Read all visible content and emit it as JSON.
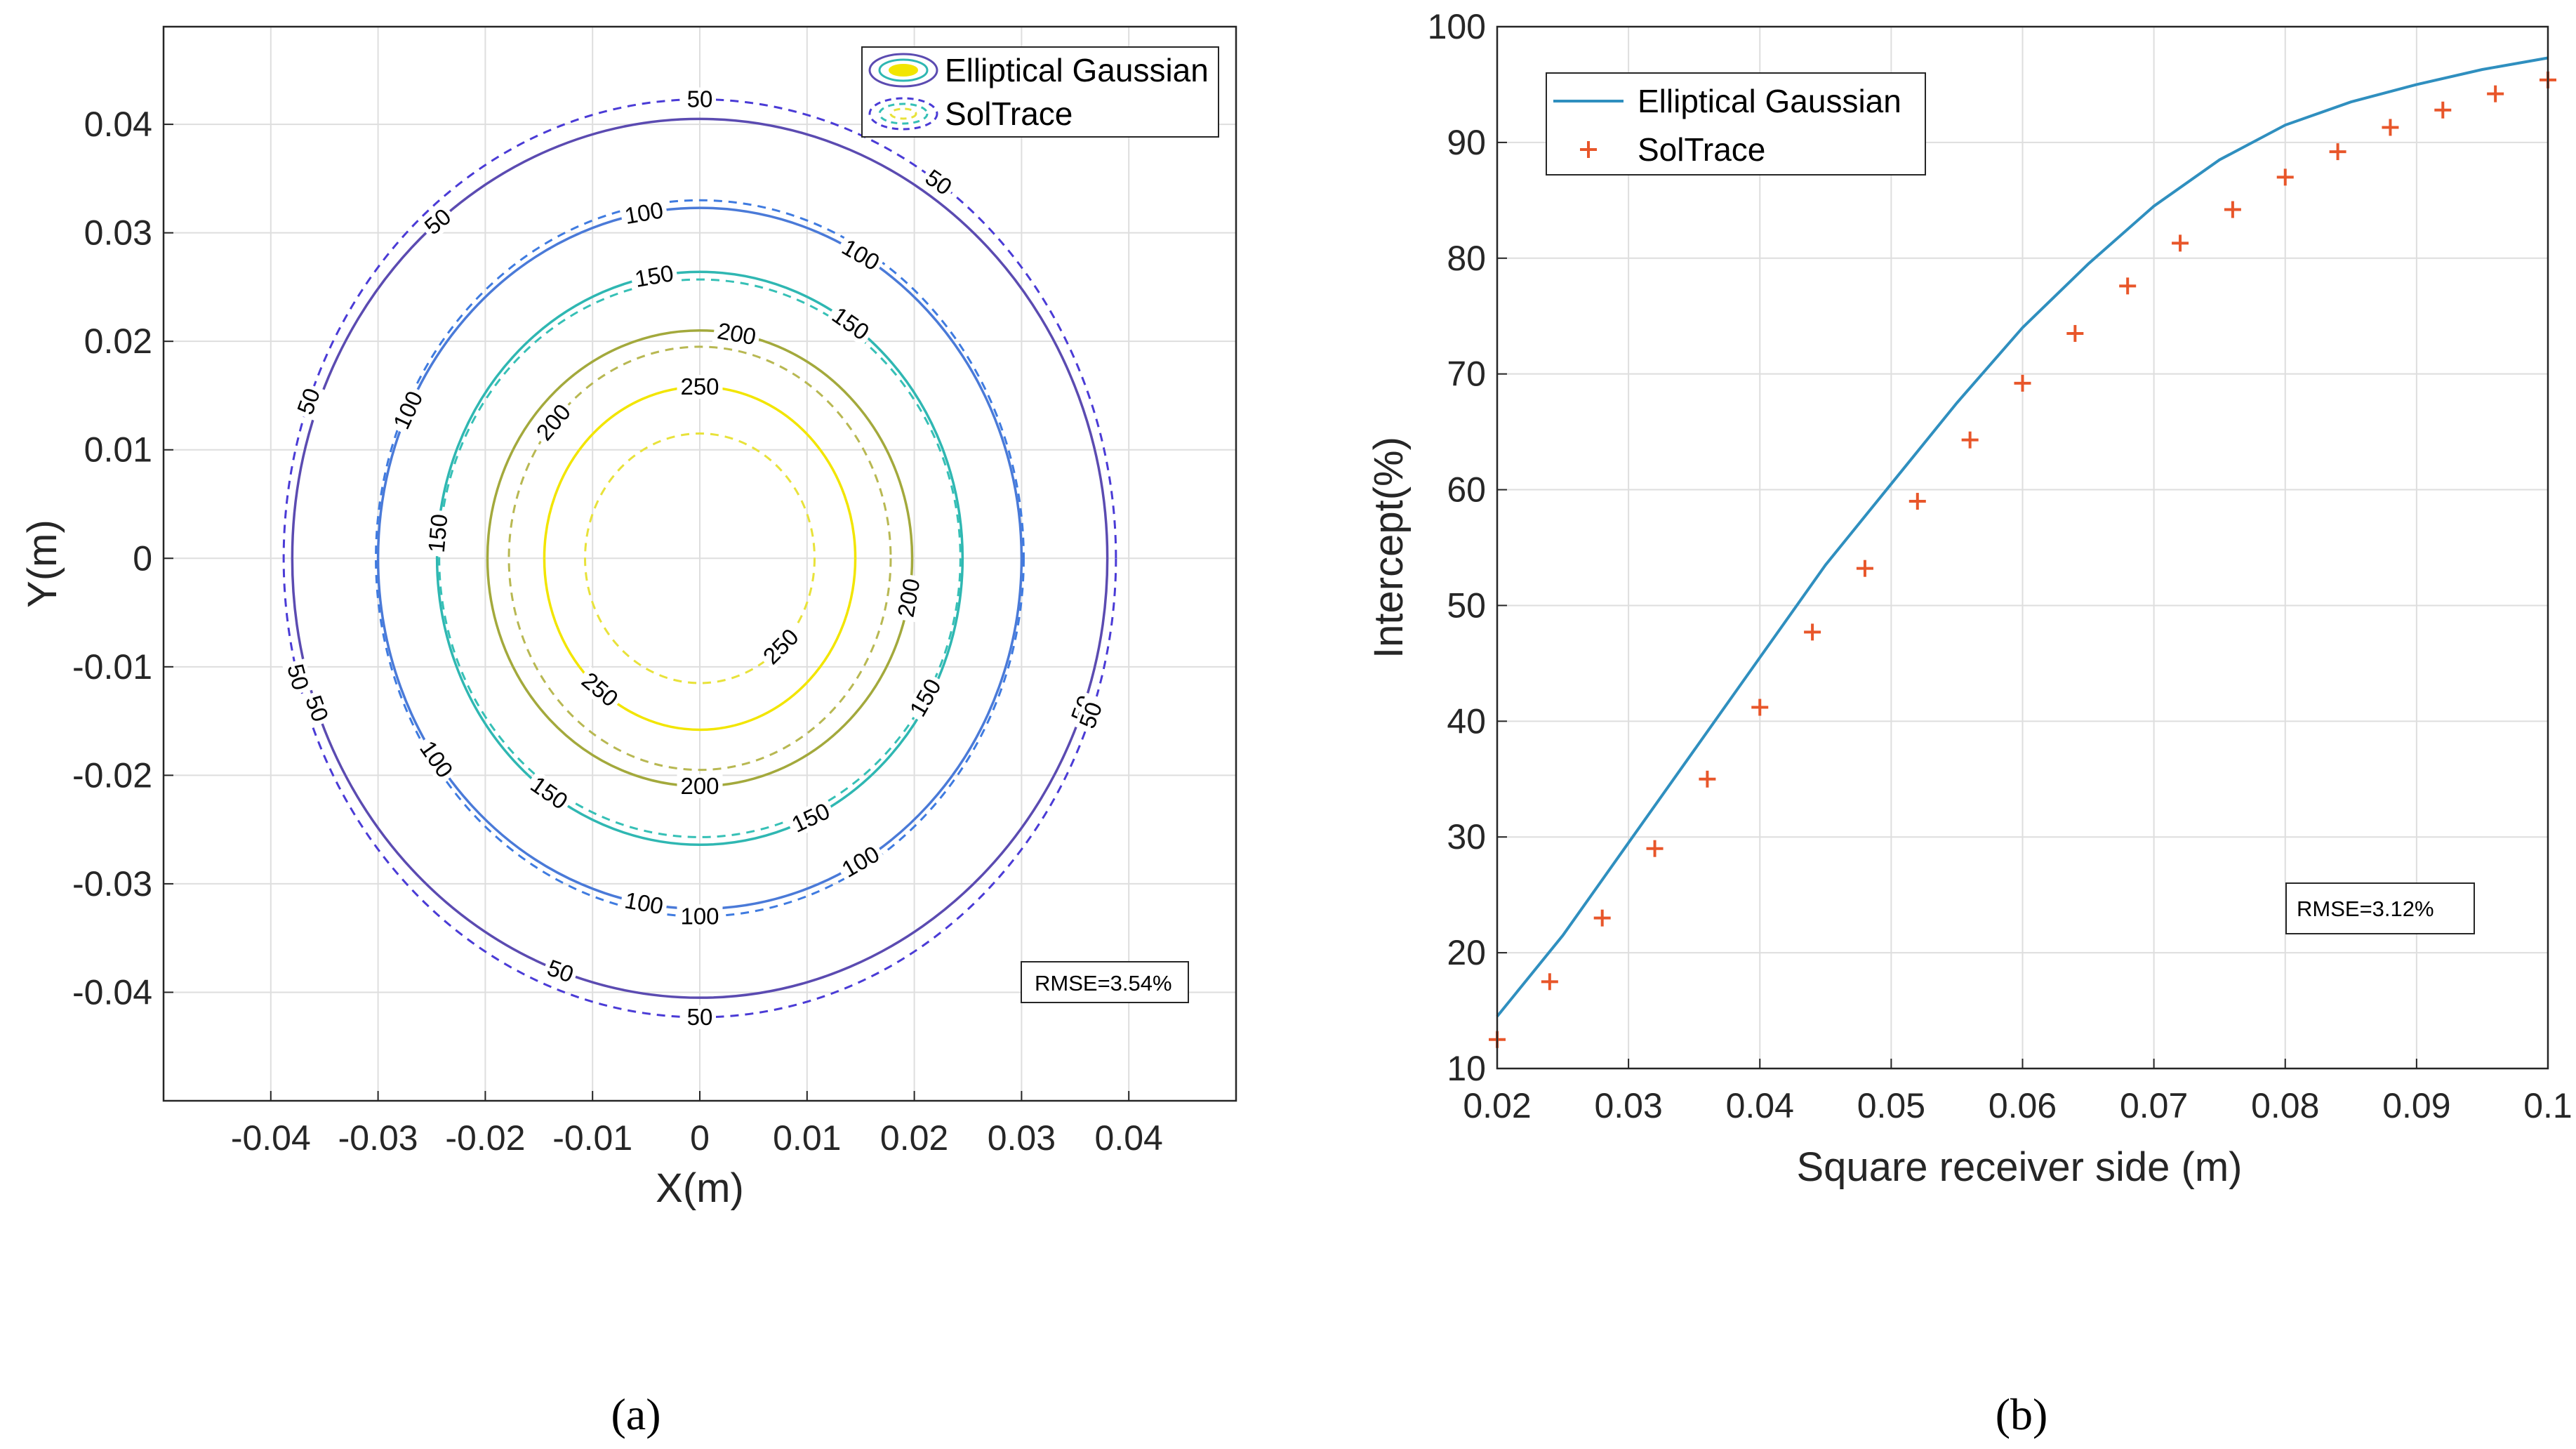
{
  "chart_data": [
    {
      "type": "contour",
      "panel_label": "(a)",
      "xlabel": "X(m)",
      "ylabel": "Y(m)",
      "xlim": [
        -0.05,
        0.05
      ],
      "ylim": [
        -0.05,
        0.049
      ],
      "xticks": [
        -0.04,
        -0.03,
        -0.02,
        -0.01,
        0,
        0.01,
        0.02,
        0.03,
        0.04
      ],
      "xtick_labels": [
        "-0.04",
        "-0.03",
        "-0.02",
        "-0.01",
        "0",
        "0.01",
        "0.02",
        "0.03",
        "0.04"
      ],
      "yticks": [
        0.04,
        0.03,
        0.02,
        0.01,
        0,
        -0.01,
        -0.02,
        -0.03,
        -0.04
      ],
      "ytick_labels": [
        "0.04",
        "0.03",
        "0.02",
        "0.01",
        "0",
        "-0.01",
        "-0.02",
        "-0.03",
        "-0.04"
      ],
      "grid": true,
      "legend": [
        "Elliptical Gaussian",
        "SolTrace"
      ],
      "legend_location": "top-right",
      "annotation": "RMSE=3.54%",
      "series": [
        {
          "name": "Elliptical Gaussian",
          "style": "solid",
          "contours": [
            {
              "level": 50,
              "rx": 0.038,
              "ry": 0.0405,
              "color": "#5b4bb1",
              "labels": [
                "50",
                "50",
                "50",
                "50"
              ]
            },
            {
              "level": 100,
              "rx": 0.03,
              "ry": 0.0323,
              "color": "#4a7ad8",
              "labels": [
                "100",
                "100",
                "100",
                "100",
                "100",
                "100"
              ]
            },
            {
              "level": 150,
              "rx": 0.0245,
              "ry": 0.0264,
              "color": "#2fb7b2",
              "labels": [
                "150",
                "150",
                "150",
                "150",
                "150"
              ]
            },
            {
              "level": 200,
              "rx": 0.0198,
              "ry": 0.021,
              "color": "#a3a93c",
              "labels": [
                "200",
                "200",
                "200"
              ]
            },
            {
              "level": 250,
              "rx": 0.0145,
              "ry": 0.0158,
              "color": "#f2e500",
              "labels": [
                "250",
                "250"
              ]
            }
          ]
        },
        {
          "name": "SolTrace",
          "style": "dashed",
          "contours": [
            {
              "level": 50,
              "rx": 0.0388,
              "ry": 0.0423,
              "color": "#4a3bd6",
              "labels": [
                "50",
                "50",
                "50",
                "50",
                "50",
                "50"
              ]
            },
            {
              "level": 100,
              "rx": 0.0302,
              "ry": 0.033,
              "color": "#3f7be0",
              "labels": [
                "100"
              ]
            },
            {
              "level": 150,
              "rx": 0.0243,
              "ry": 0.0257,
              "color": "#36c0b6",
              "labels": [
                "150"
              ]
            },
            {
              "level": 200,
              "rx": 0.0178,
              "ry": 0.0195,
              "color": "#b8b852",
              "labels": [
                "200"
              ]
            },
            {
              "level": 250,
              "rx": 0.0107,
              "ry": 0.0115,
              "color": "#e8e23a",
              "labels": [
                "250"
              ]
            }
          ]
        }
      ]
    },
    {
      "type": "line",
      "panel_label": "(b)",
      "xlabel": "Square receiver side (m)",
      "ylabel": "Intercept(%)",
      "xlim": [
        0.02,
        0.1
      ],
      "ylim": [
        10,
        100
      ],
      "xticks": [
        0.02,
        0.03,
        0.04,
        0.05,
        0.06,
        0.07,
        0.08,
        0.09,
        0.1
      ],
      "xtick_labels": [
        "0.02",
        "0.03",
        "0.04",
        "0.05",
        "0.06",
        "0.07",
        "0.08",
        "0.09",
        "0.1"
      ],
      "yticks": [
        10,
        20,
        30,
        40,
        50,
        60,
        70,
        80,
        90,
        100
      ],
      "ytick_labels": [
        "10",
        "20",
        "30",
        "40",
        "50",
        "60",
        "70",
        "80",
        "90",
        "100"
      ],
      "grid": true,
      "legend_location": "top-left",
      "annotation": "RMSE=3.12%",
      "series": [
        {
          "name": "Elliptical Gaussian",
          "style": "line",
          "color": "#2f8fbf",
          "x": [
            0.02,
            0.025,
            0.03,
            0.035,
            0.04,
            0.045,
            0.05,
            0.055,
            0.06,
            0.065,
            0.07,
            0.075,
            0.08,
            0.085,
            0.09,
            0.095,
            0.1
          ],
          "y": [
            14.5,
            21.5,
            29.5,
            37.5,
            45.5,
            53.5,
            60.5,
            67.5,
            74,
            79.5,
            84.5,
            88.5,
            91.5,
            93.5,
            95,
            96.3,
            97.3
          ]
        },
        {
          "name": "SolTrace",
          "style": "marker",
          "marker": "+",
          "color": "#e8562a",
          "x": [
            0.02,
            0.024,
            0.028,
            0.032,
            0.036,
            0.04,
            0.044,
            0.048,
            0.052,
            0.056,
            0.06,
            0.064,
            0.068,
            0.072,
            0.076,
            0.08,
            0.084,
            0.088,
            0.092,
            0.096,
            0.1
          ],
          "y": [
            12.5,
            17.5,
            23,
            29,
            35,
            41.2,
            47.7,
            53.2,
            59,
            64.3,
            69.2,
            73.5,
            77.6,
            81.3,
            84.2,
            87,
            89.2,
            91.3,
            92.8,
            94.2,
            95.4
          ]
        }
      ]
    }
  ]
}
